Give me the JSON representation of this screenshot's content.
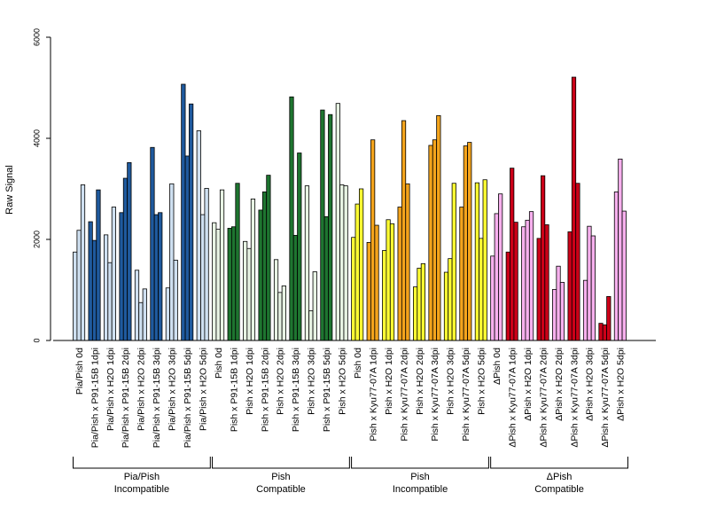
{
  "chart_data": {
    "type": "bar",
    "ylabel": "Raw Signal",
    "ylim": [
      0,
      6000
    ],
    "yticks": [
      0,
      2000,
      4000,
      6000
    ],
    "categories": [
      "Pia/Pish 0d",
      "Pia/Pish x P91-15B 1dpi",
      "Pia/Pish x H2O 1dpi",
      "Pia/Pish x P91-15B 2dpi",
      "Pia/Pish x H2O 2dpi",
      "Pia/Pish x P91-15B 3dpi",
      "Pia/Pish x H2O 3dpi",
      "Pia/Pish x P91-15B 5dpi",
      "Pia/Pish x H2O 5dpi",
      "Pish 0d",
      "Pish x P91-15B 1dpi",
      "Pish x H2O 1dpi",
      "Pish x P91-15B 2dpi",
      "Pish x H2O 2dpi",
      "Pish x P91-15B 3dpi",
      "Pish x H2O 3dpi",
      "Pish x P91-15B 5dpi",
      "Pish x H2O 5dpi",
      "Pish 0d",
      "Pish x Kyu77-07A 1dpi",
      "Pish x H2O 1dpi",
      "Pish x Kyu77-07A 2dpi",
      "Pish x H2O 2dpi",
      "Pish x Kyu77-07A 3dpi",
      "Pish x H2O 3dpi",
      "Pish x Kyu77-07A 5dpi",
      "Pish x H2O 5dpi",
      "ΔPish 0d",
      "ΔPish x Kyu77-07A 1dpi",
      "ΔPish x H2O 1dpi",
      "ΔPish x Kyu77-07A 2dpi",
      "ΔPish x H2O 2dpi",
      "ΔPish x Kyu77-07A 3dpi",
      "ΔPish x H2O 3dpi",
      "ΔPish x Kyu77-07A 5dpi",
      "ΔPish x H2O 5dpi"
    ],
    "values": [
      [
        1750,
        2180,
        3080
      ],
      [
        2350,
        1980,
        2980
      ],
      [
        2090,
        1540,
        2640
      ],
      [
        2530,
        3210,
        3520
      ],
      [
        1390,
        750,
        1020
      ],
      [
        3820,
        2490,
        2530
      ],
      [
        1040,
        3100,
        1590
      ],
      [
        5070,
        3650,
        4680
      ],
      [
        4150,
        2490,
        3010
      ],
      [
        2330,
        2200,
        2980
      ],
      [
        2220,
        2250,
        3110
      ],
      [
        1960,
        1820,
        2800
      ],
      [
        2580,
        2940,
        3270
      ],
      [
        1600,
        950,
        1080
      ],
      [
        4820,
        2080,
        3710
      ],
      [
        3060,
        590,
        1360
      ],
      [
        4560,
        2450,
        4470
      ],
      [
        4690,
        3080,
        3060
      ],
      [
        2040,
        2700,
        3000
      ],
      [
        1940,
        3970,
        2280
      ],
      [
        1780,
        2390,
        2310
      ],
      [
        2640,
        4350,
        3100
      ],
      [
        1060,
        1430,
        1520
      ],
      [
        3860,
        3970,
        4450
      ],
      [
        1350,
        1620,
        3110
      ],
      [
        2640,
        3850,
        3920
      ],
      [
        3120,
        2020,
        3180
      ],
      [
        1670,
        2510,
        2900
      ],
      [
        1750,
        3410,
        2340
      ],
      [
        2250,
        2380,
        2550
      ],
      [
        2020,
        3260,
        2290
      ],
      [
        1010,
        1470,
        1150
      ],
      [
        2150,
        5210,
        3110
      ],
      [
        1190,
        2260,
        2070
      ],
      [
        340,
        310,
        870
      ],
      [
        2940,
        3590,
        2560
      ]
    ],
    "groups": [
      {
        "line1": "Pia/Pish",
        "line2": "Incompatible",
        "start": 0,
        "end": 8
      },
      {
        "line1": "Pish",
        "line2": "Compatible",
        "start": 9,
        "end": 17
      },
      {
        "line1": "Pish",
        "line2": "Incompatible",
        "start": 18,
        "end": 26
      },
      {
        "line1": "ΔPish",
        "line2": "Compatible",
        "start": 27,
        "end": 35
      }
    ],
    "colors": {
      "g0_light": "#cfe0f1",
      "g0_dark": "#1f5a9e",
      "g1_light": "#e8f4e4",
      "g1_dark": "#1e7530",
      "g2_light": "#ffff33",
      "g2_dark": "#f4a41c",
      "g3_light": "#f7b0ee",
      "g3_dark": "#cc0018",
      "outline": "#000000"
    }
  }
}
